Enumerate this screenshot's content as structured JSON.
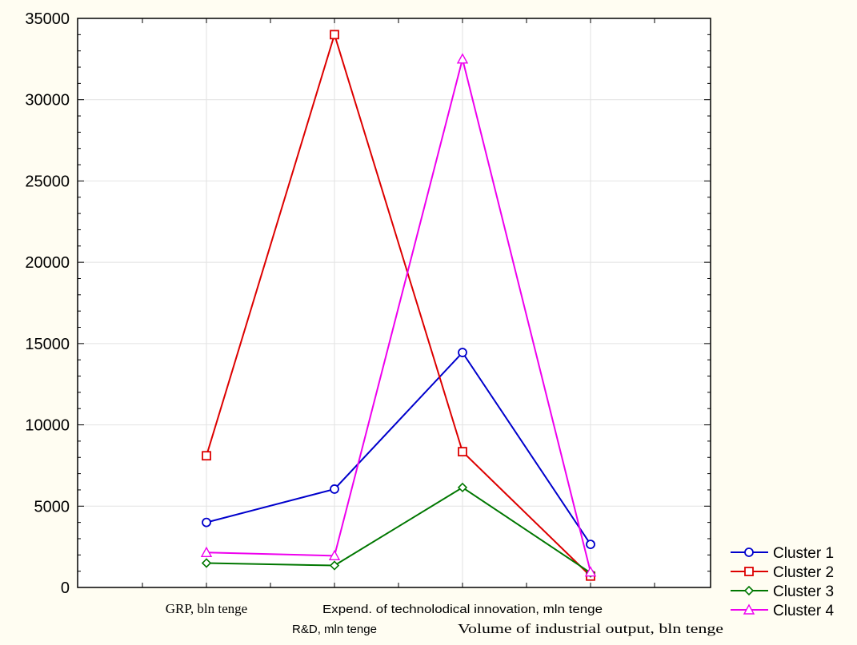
{
  "chart_data": {
    "type": "line",
    "title": "",
    "xlabel": "",
    "ylabel": "",
    "ylim": [
      0,
      35000
    ],
    "yticks": [
      0,
      5000,
      10000,
      15000,
      20000,
      25000,
      30000,
      35000
    ],
    "grid": true,
    "legend_position": "bottom-right",
    "categories": [
      "GRP, bln tenge",
      "R&D, mln tenge",
      "Expend. of technolodical innovation, mln tenge",
      "Volume of industrial output, bln tenge"
    ],
    "series": [
      {
        "name": "Cluster 1",
        "color": "#0000cc",
        "marker": "circle",
        "values": [
          4000,
          6050,
          14450,
          2650
        ]
      },
      {
        "name": "Cluster 2",
        "color": "#dd0000",
        "marker": "square",
        "values": [
          8100,
          34000,
          8350,
          700
        ]
      },
      {
        "name": "Cluster 3",
        "color": "#007700",
        "marker": "diamond",
        "values": [
          1500,
          1350,
          6150,
          900
        ]
      },
      {
        "name": "Cluster 4",
        "color": "#ee00ee",
        "marker": "triangle",
        "values": [
          2150,
          1950,
          32500,
          950
        ]
      }
    ]
  }
}
